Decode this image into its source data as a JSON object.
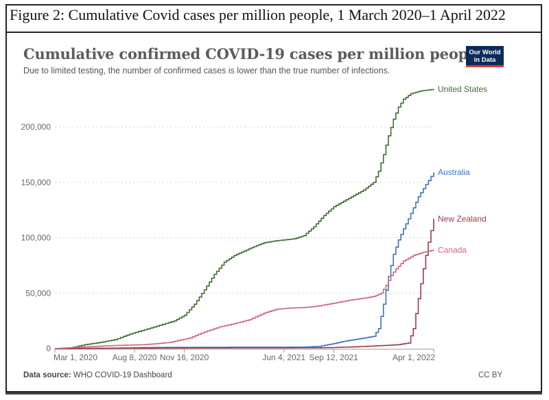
{
  "figure_title": "Figure 2: Cumulative Covid cases per million people, 1 March 2020–1 April 2022",
  "logo": {
    "line1": "Our World",
    "line2": "in Data",
    "colors": {
      "bg": "#0c2b5b",
      "accent": "#d73b3b"
    }
  },
  "footer": {
    "source_label": "Data source:",
    "source_value": "WHO COVID-19 Dashboard",
    "license": "CC BY"
  },
  "chart_data": {
    "type": "line",
    "title": "Cumulative confirmed COVID-19 cases per million people",
    "subtitle": "Due to limited testing, the number of confirmed cases is lower than the true number of infections.",
    "xlabel": "",
    "ylabel": "",
    "x_unit": "days since Mar 1, 2020",
    "xlim": [
      0,
      761
    ],
    "ylim": [
      0,
      235000
    ],
    "grid": true,
    "legend": "inline-right",
    "x_ticks": [
      {
        "day": 0,
        "label": "Mar 1, 2020"
      },
      {
        "day": 160,
        "label": "Aug 8, 2020"
      },
      {
        "day": 260,
        "label": "Nov 16, 2020"
      },
      {
        "day": 460,
        "label": "Jun 4, 2021"
      },
      {
        "day": 560,
        "label": "Sep 12, 2021"
      },
      {
        "day": 761,
        "label": "Apr 1, 2022"
      }
    ],
    "y_ticks": [
      {
        "value": 0,
        "label": "0"
      },
      {
        "value": 50000,
        "label": "50,000"
      },
      {
        "value": 100000,
        "label": "100,000"
      },
      {
        "value": 150000,
        "label": "150,000"
      },
      {
        "value": 200000,
        "label": "200,000"
      }
    ],
    "series": [
      {
        "name": "United States",
        "color": "#3f6b30",
        "points": [
          [
            0,
            0
          ],
          [
            30,
            500
          ],
          [
            60,
            3500
          ],
          [
            90,
            5500
          ],
          [
            120,
            8000
          ],
          [
            150,
            13000
          ],
          [
            180,
            17000
          ],
          [
            210,
            21000
          ],
          [
            240,
            25000
          ],
          [
            260,
            30000
          ],
          [
            280,
            40000
          ],
          [
            300,
            53000
          ],
          [
            320,
            67000
          ],
          [
            340,
            78000
          ],
          [
            360,
            84000
          ],
          [
            380,
            88000
          ],
          [
            400,
            92000
          ],
          [
            420,
            95500
          ],
          [
            440,
            97000
          ],
          [
            460,
            98000
          ],
          [
            480,
            99000
          ],
          [
            500,
            102000
          ],
          [
            520,
            110000
          ],
          [
            540,
            120000
          ],
          [
            560,
            128000
          ],
          [
            580,
            133000
          ],
          [
            600,
            138000
          ],
          [
            620,
            143000
          ],
          [
            640,
            150000
          ],
          [
            650,
            160000
          ],
          [
            660,
            175000
          ],
          [
            670,
            192000
          ],
          [
            680,
            207000
          ],
          [
            690,
            218000
          ],
          [
            700,
            225000
          ],
          [
            715,
            230000
          ],
          [
            735,
            232500
          ],
          [
            761,
            234000
          ]
        ]
      },
      {
        "name": "Australia",
        "color": "#3b72c4",
        "points": [
          [
            0,
            0
          ],
          [
            100,
            300
          ],
          [
            200,
            1000
          ],
          [
            300,
            1100
          ],
          [
            400,
            1200
          ],
          [
            500,
            1300
          ],
          [
            530,
            2000
          ],
          [
            560,
            4500
          ],
          [
            580,
            6500
          ],
          [
            600,
            8000
          ],
          [
            620,
            9500
          ],
          [
            640,
            11000
          ],
          [
            650,
            18000
          ],
          [
            660,
            40000
          ],
          [
            670,
            65000
          ],
          [
            680,
            85000
          ],
          [
            690,
            98000
          ],
          [
            700,
            108000
          ],
          [
            710,
            117000
          ],
          [
            720,
            127000
          ],
          [
            730,
            137000
          ],
          [
            745,
            148000
          ],
          [
            761,
            159000
          ]
        ]
      },
      {
        "name": "New Zealand",
        "color": "#9c3a46",
        "points": [
          [
            0,
            0
          ],
          [
            100,
            300
          ],
          [
            200,
            400
          ],
          [
            300,
            500
          ],
          [
            400,
            550
          ],
          [
            500,
            600
          ],
          [
            550,
            800
          ],
          [
            600,
            1500
          ],
          [
            650,
            2500
          ],
          [
            690,
            3500
          ],
          [
            710,
            5000
          ],
          [
            720,
            18000
          ],
          [
            730,
            45000
          ],
          [
            740,
            72000
          ],
          [
            750,
            96000
          ],
          [
            761,
            117000
          ]
        ]
      },
      {
        "name": "Canada",
        "color": "#d0657a",
        "points": [
          [
            0,
            0
          ],
          [
            60,
            1500
          ],
          [
            120,
            2800
          ],
          [
            180,
            3500
          ],
          [
            230,
            5500
          ],
          [
            270,
            9500
          ],
          [
            300,
            15000
          ],
          [
            330,
            19500
          ],
          [
            360,
            22500
          ],
          [
            390,
            26000
          ],
          [
            420,
            32000
          ],
          [
            445,
            35500
          ],
          [
            470,
            36500
          ],
          [
            500,
            37000
          ],
          [
            530,
            38500
          ],
          [
            560,
            41000
          ],
          [
            590,
            43500
          ],
          [
            620,
            45500
          ],
          [
            640,
            47000
          ],
          [
            655,
            50000
          ],
          [
            665,
            57000
          ],
          [
            675,
            66000
          ],
          [
            685,
            72000
          ],
          [
            700,
            79000
          ],
          [
            720,
            84000
          ],
          [
            740,
            87000
          ],
          [
            761,
            89000
          ]
        ]
      }
    ]
  }
}
